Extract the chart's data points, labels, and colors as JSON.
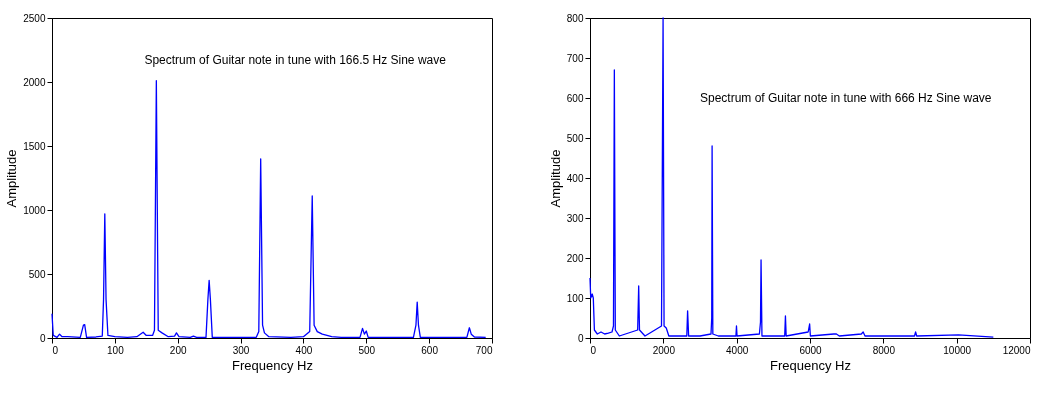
{
  "chart_data": [
    {
      "type": "line",
      "xlabel": "Frequency Hz",
      "ylabel": "Amplitude",
      "annotations": [
        "Spectrum of Guitar note in tune with 166.5 Hz Sine wave"
      ],
      "xlim": [
        0,
        700
      ],
      "ylim": [
        0,
        2500
      ],
      "xticks": [
        0,
        100,
        200,
        300,
        400,
        500,
        600,
        700
      ],
      "yticks": [
        0,
        500,
        1000,
        1500,
        2000,
        2500
      ],
      "grid": false,
      "series": [
        {
          "color": "#0000ff",
          "x": [
            0,
            2,
            8,
            12,
            16,
            25,
            45,
            50,
            52,
            55,
            70,
            80,
            82,
            84,
            86,
            89,
            100,
            120,
            135,
            145,
            150,
            160,
            163,
            166,
            169,
            175,
            185,
            195,
            198,
            202,
            220,
            225,
            230,
            245,
            248,
            250,
            252,
            255,
            280,
            325,
            329,
            332,
            335,
            338,
            345,
            380,
            400,
            410,
            414,
            417,
            422,
            430,
            445,
            460,
            490,
            494,
            497,
            500,
            503,
            575,
            579,
            581,
            583,
            586,
            600,
            660,
            664,
            667,
            672,
            690
          ],
          "values": [
            190,
            20,
            5,
            30,
            10,
            10,
            5,
            100,
            105,
            5,
            8,
            15,
            300,
            970,
            300,
            20,
            10,
            5,
            10,
            45,
            20,
            20,
            60,
            2010,
            60,
            40,
            10,
            15,
            40,
            10,
            5,
            15,
            5,
            5,
            300,
            450,
            300,
            5,
            5,
            5,
            50,
            1400,
            100,
            40,
            10,
            5,
            10,
            50,
            1110,
            100,
            50,
            30,
            10,
            5,
            5,
            75,
            30,
            55,
            5,
            5,
            100,
            280,
            100,
            5,
            5,
            5,
            80,
            30,
            8,
            5
          ]
        }
      ]
    },
    {
      "type": "line",
      "xlabel": "Frequency Hz",
      "ylabel": "Amplitude",
      "annotations": [
        "Spectrum of Guitar note in tune with 666 Hz Sine wave"
      ],
      "xlim": [
        0,
        12000
      ],
      "ylim": [
        0,
        800
      ],
      "xticks": [
        0,
        2000,
        4000,
        6000,
        8000,
        10000,
        12000
      ],
      "yticks": [
        0,
        100,
        200,
        300,
        400,
        500,
        600,
        700,
        800
      ],
      "grid": false,
      "series": [
        {
          "color": "#0000ff",
          "x": [
            0,
            20,
            60,
            90,
            120,
            200,
            300,
            400,
            500,
            600,
            640,
            664,
            690,
            800,
            1300,
            1328,
            1350,
            1400,
            1500,
            1950,
            1993,
            2020,
            2080,
            2150,
            2640,
            2662,
            2690,
            3000,
            3300,
            3320,
            3330,
            3350,
            3500,
            3980,
            3995,
            4010,
            4620,
            4650,
            4665,
            4690,
            5310,
            5330,
            5350,
            5950,
            5990,
            6010,
            6650,
            6720,
            6800,
            7400,
            7450,
            7500,
            8000,
            8850,
            8880,
            8910,
            10050,
            11000
          ],
          "values": [
            150,
            100,
            110,
            100,
            20,
            10,
            15,
            10,
            12,
            15,
            30,
            670,
            20,
            5,
            20,
            130,
            20,
            15,
            5,
            30,
            800,
            30,
            25,
            5,
            5,
            68,
            5,
            5,
            10,
            50,
            480,
            10,
            5,
            5,
            30,
            5,
            10,
            40,
            195,
            5,
            5,
            55,
            5,
            15,
            35,
            5,
            10,
            10,
            5,
            10,
            15,
            5,
            5,
            5,
            15,
            5,
            8,
            2
          ]
        }
      ]
    }
  ]
}
